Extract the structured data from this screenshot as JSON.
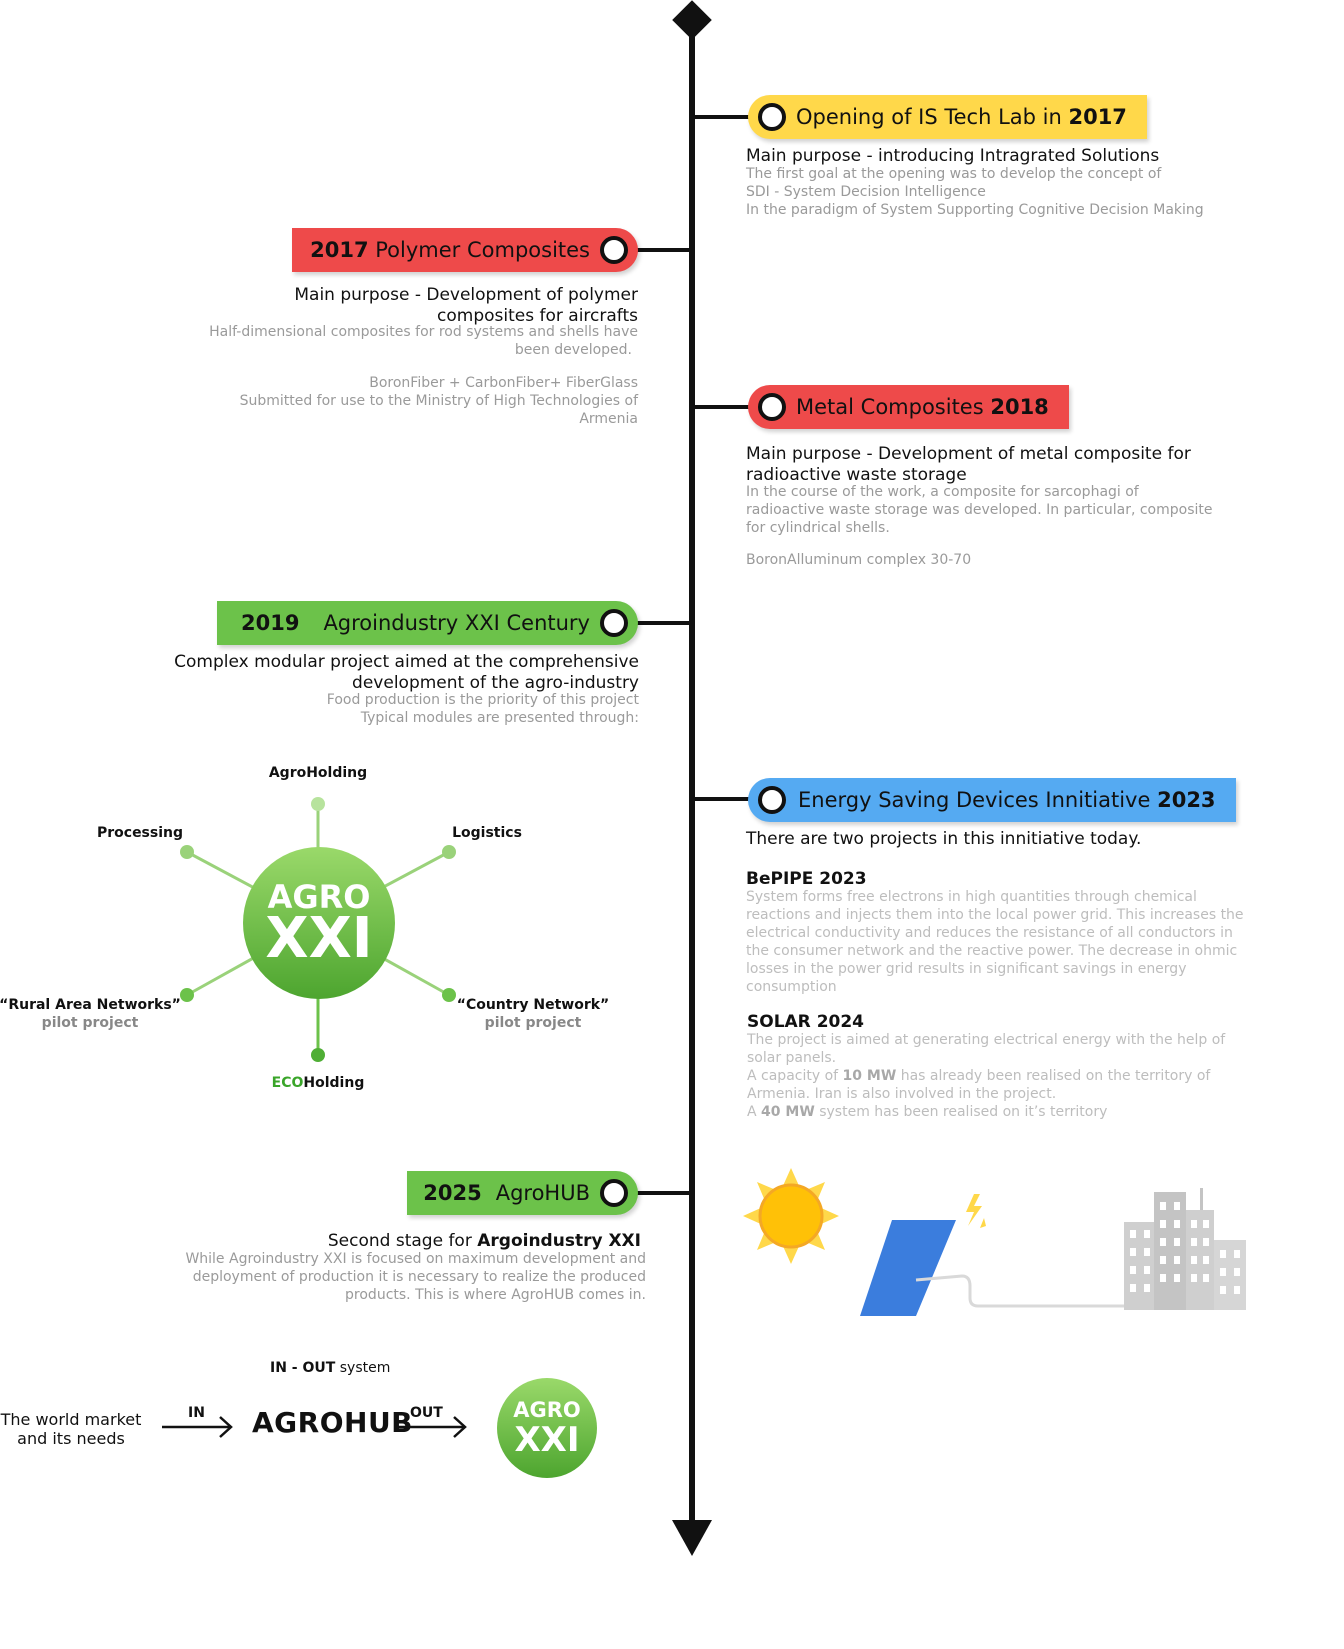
{
  "timeline": {
    "items": [
      {
        "id": "istech",
        "title_pre": "Opening of IS Tech Lab in ",
        "title_bold": "2017",
        "color": "#ffd84a",
        "main": "Main purpose - introducing Intragrated Solutions",
        "sub": [
          "The first goal at the opening was to develop the concept of",
          "SDI - System Decision Intelligence",
          "In the paradigm of System Supporting Cognitive Decision Making"
        ]
      },
      {
        "id": "polymer",
        "title_bold": "2017",
        "title_post": " Polymer Composites",
        "color": "#ee4a4a",
        "main": [
          "Main purpose - Development of polymer",
          "composites for aircrafts"
        ],
        "sub": [
          "Half-dimensional composites for rod systems and shells have",
          "been developed."
        ],
        "sub_b": [
          "BoronFiber + CarbonFiber+ FiberGlass",
          "Submitted for use to the Ministry of High Technologies of",
          "Armenia"
        ]
      },
      {
        "id": "metal",
        "title_pre": "Metal Composites ",
        "title_bold": "2018",
        "color": "#ee4a4a",
        "main": [
          "Main purpose - Development of metal composite for",
          "radioactive waste storage"
        ],
        "sub": [
          "In the course of the work, a composite for sarcophagi of",
          "radioactive waste storage was developed. In particular, composite",
          "for cylindrical shells."
        ],
        "sub_b": "BoronAlluminum complex 30-70"
      },
      {
        "id": "agro",
        "title_bold": "2019",
        "title_post": "Agroindustry XXI Century",
        "color": "#6cc24a",
        "main": [
          "Complex modular project aimed at the comprehensive",
          "development of the agro-industry"
        ],
        "sub": [
          "Food production is the priority of this project",
          "Typical modules are presented through:"
        ]
      },
      {
        "id": "energy",
        "title_pre": "Energy Saving Devices Innitiative ",
        "title_bold": "2023",
        "color": "#55aaf2",
        "main": "There are two projects in this innitiative today.",
        "bepipe_title": "BePIPE 2023",
        "bepipe_text": [
          "System forms free electrons in high quantities through chemical",
          "reactions and injects them into the local power grid. This increases the",
          "electrical conductivity and reduces the resistance of all conductors in",
          "the consumer network and the reactive power. The decrease in ohmic",
          "losses in the power grid results in significant savings in energy",
          "consumption"
        ],
        "solar_title": "SOLAR 2024",
        "solar_text_1": [
          "The project is aimed at generating electrical energy with the help of",
          "solar panels."
        ],
        "solar_text_2_pre": "A capacity of ",
        "solar_text_2_bold": "10 MW",
        "solar_text_2_post": " has already been realised on the territory of",
        "solar_text_3": "Armenia. Iran is also involved in the project.",
        "solar_text_4_pre": "A ",
        "solar_text_4_bold": "40 MW",
        "solar_text_4_post": " system has been realised on it’s territory"
      },
      {
        "id": "agrohub",
        "title_bold": "2025",
        "title_post": "AgroHUB",
        "color": "#6cc24a",
        "main_pre": "Second stage for ",
        "main_bold": "Argoindustry XXI",
        "sub": [
          "While Agroindustry XXI is focused on maximum development and",
          "deployment of production it is necessary to realize the produced",
          "products. This is where AgroHUB comes in."
        ]
      }
    ]
  },
  "agro_diagram": {
    "center_top": "AGRO",
    "center_bottom": "XXI",
    "nodes": {
      "agroholding": "AgroHolding",
      "processing": "Processing",
      "logistics": "Logistics",
      "rural": "“Rural Area Networks”",
      "rural_sub": "pilot project",
      "country": "“Country Network”",
      "country_sub": "pilot project",
      "eco_green": "ECO",
      "eco_rest": "Holding"
    },
    "green": "#6cc24a"
  },
  "hub_flow": {
    "title_bold": "IN - OUT",
    "title_rest": " system",
    "source": [
      "The world market",
      "and its needs"
    ],
    "in_label": "IN",
    "hub": "AGROHUB",
    "out_label": "OUT",
    "target_top": "AGRO",
    "target_bottom": "XXI"
  },
  "icons": [
    "sun-icon",
    "solar-panel-icon",
    "lightning-icon",
    "city-buildings-icon"
  ]
}
